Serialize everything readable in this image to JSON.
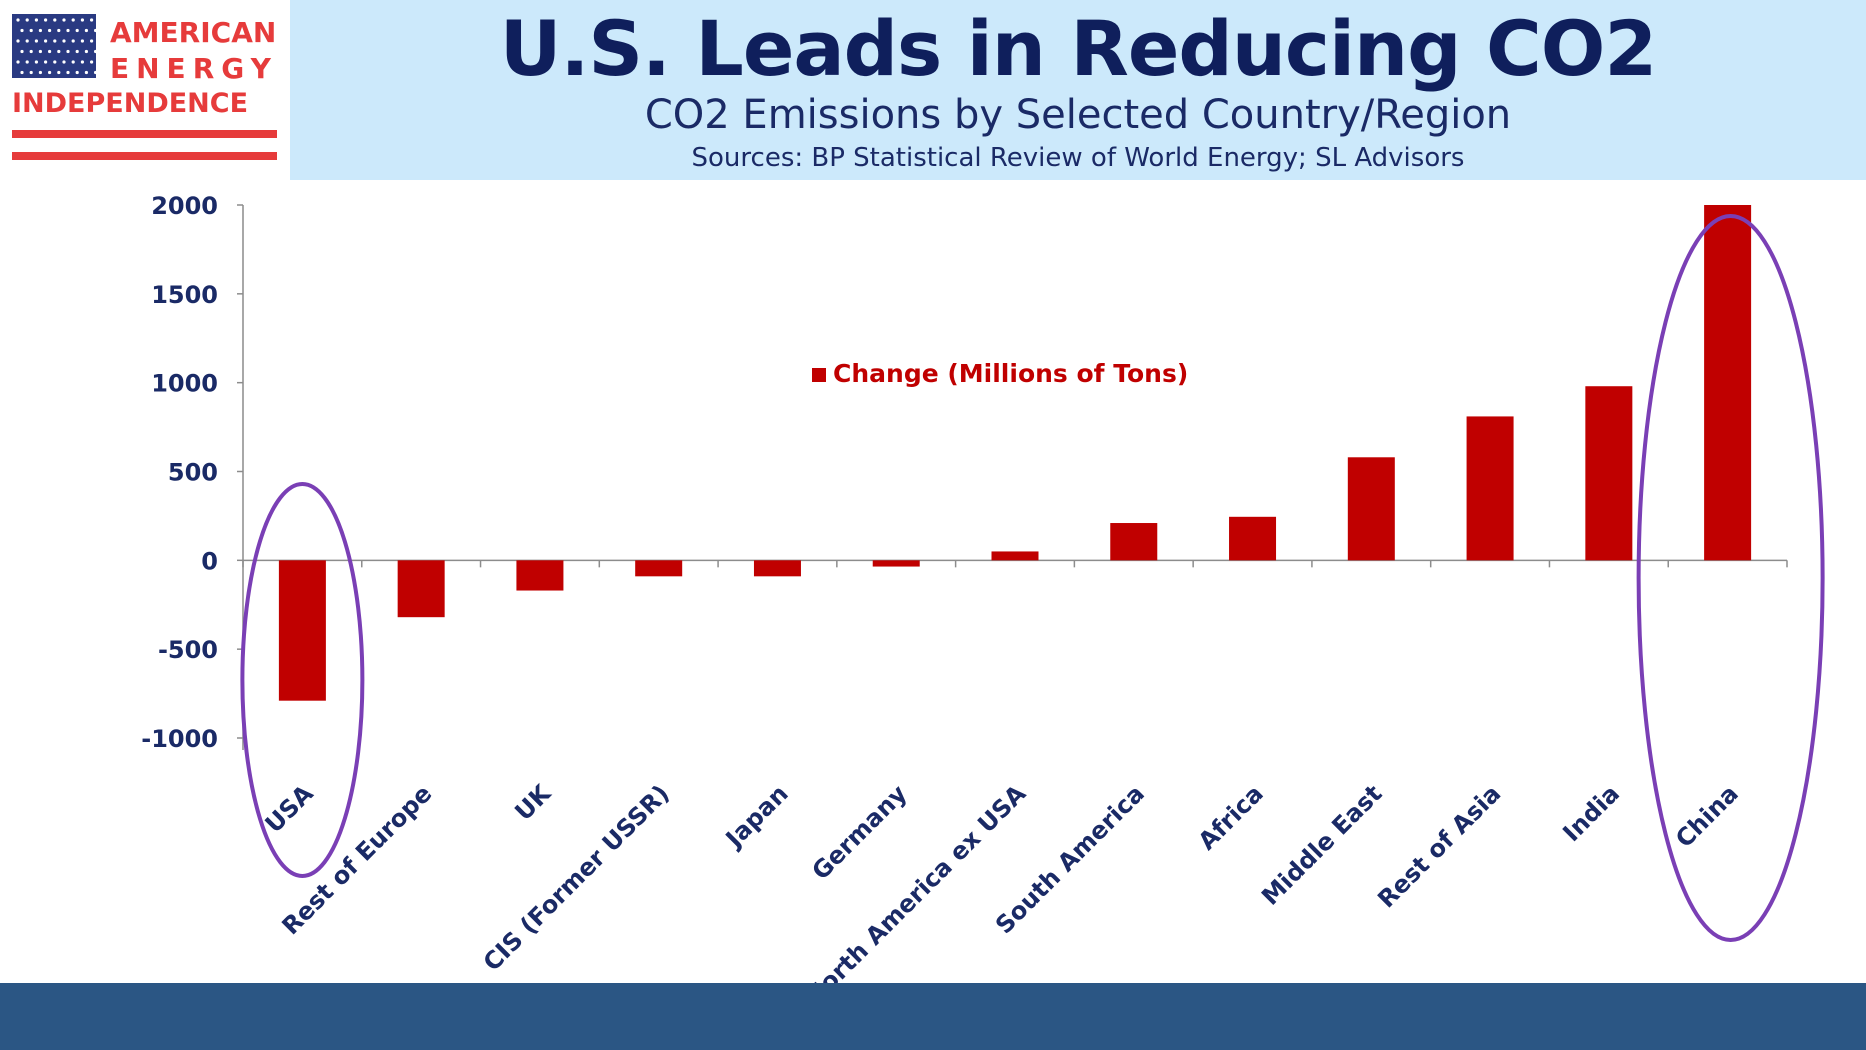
{
  "logo": {
    "line1": "AMERICAN",
    "line2": "ENERGY",
    "line3": "INDEPENDENCE",
    "colors": {
      "red": "#e63b3b",
      "navy": "#2a3a82"
    }
  },
  "header": {
    "title": "U.S. Leads in Reducing CO2",
    "subtitle": "CO2 Emissions by Selected Country/Region",
    "sources": "Sources: BP Statistical Review of World Energy; SL Advisors"
  },
  "chart_data": {
    "type": "bar",
    "title": "U.S. Leads in Reducing CO2",
    "xlabel": "",
    "ylabel": "",
    "ylim": [
      -1000,
      2000
    ],
    "yticks": [
      2000,
      1500,
      1000,
      500,
      0,
      -500,
      -1000
    ],
    "legend": "top-center",
    "grid": false,
    "categories": [
      "USA",
      "Rest of Europe",
      "UK",
      "CIS (Former USSR)",
      "Japan",
      "Germany",
      "North America ex USA",
      "South America",
      "Africa",
      "Middle East",
      "Rest of Asia",
      "India",
      "China"
    ],
    "series": [
      {
        "name": "Change (Millions of Tons)",
        "color": "#c00000",
        "values": [
          -790,
          -320,
          -170,
          -90,
          -90,
          -35,
          50,
          210,
          245,
          580,
          810,
          980,
          2000
        ]
      }
    ],
    "annotations": [
      {
        "type": "ellipse",
        "target": "USA",
        "color": "#7a3fb5"
      },
      {
        "type": "ellipse",
        "target": "China",
        "color": "#7a3fb5"
      }
    ]
  },
  "footer": {
    "color": "#2b5684"
  }
}
